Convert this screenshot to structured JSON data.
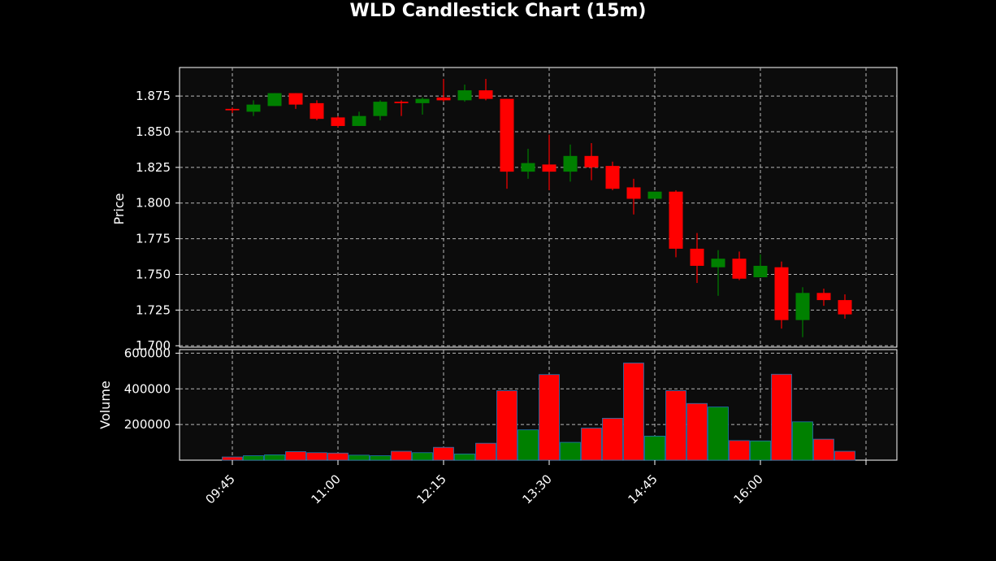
{
  "chart_data": {
    "type": "candlestick",
    "title": "WLD Candlestick Chart (15m)",
    "price_panel": {
      "ylabel": "Price",
      "ylim": [
        1.699,
        1.895
      ],
      "yticks": [
        "1.700",
        "1.725",
        "1.750",
        "1.775",
        "1.800",
        "1.825",
        "1.850",
        "1.875"
      ],
      "grid": true
    },
    "volume_panel": {
      "ylabel": "Volume",
      "ylim": [
        0,
        620000
      ],
      "yticks": [
        "200000",
        "400000",
        "600000"
      ],
      "grid": true
    },
    "xticks": [
      "09:45",
      "11:00",
      "12:15",
      "13:30",
      "14:45",
      "16:00",
      ""
    ],
    "candles": [
      {
        "o": 1.866,
        "h": 1.867,
        "l": 1.863,
        "c": 1.865,
        "v": 18000
      },
      {
        "o": 1.864,
        "h": 1.872,
        "l": 1.861,
        "c": 1.869,
        "v": 25000
      },
      {
        "o": 1.868,
        "h": 1.877,
        "l": 1.868,
        "c": 1.877,
        "v": 30000
      },
      {
        "o": 1.877,
        "h": 1.877,
        "l": 1.866,
        "c": 1.869,
        "v": 48000
      },
      {
        "o": 1.87,
        "h": 1.872,
        "l": 1.858,
        "c": 1.859,
        "v": 42000
      },
      {
        "o": 1.86,
        "h": 1.861,
        "l": 1.853,
        "c": 1.854,
        "v": 40000
      },
      {
        "o": 1.854,
        "h": 1.864,
        "l": 1.854,
        "c": 1.861,
        "v": 28000
      },
      {
        "o": 1.861,
        "h": 1.872,
        "l": 1.858,
        "c": 1.871,
        "v": 25000
      },
      {
        "o": 1.871,
        "h": 1.872,
        "l": 1.861,
        "c": 1.87,
        "v": 50000
      },
      {
        "o": 1.87,
        "h": 1.874,
        "l": 1.862,
        "c": 1.873,
        "v": 42000
      },
      {
        "o": 1.874,
        "h": 1.887,
        "l": 1.871,
        "c": 1.872,
        "v": 72000
      },
      {
        "o": 1.872,
        "h": 1.883,
        "l": 1.871,
        "c": 1.879,
        "v": 35000
      },
      {
        "o": 1.879,
        "h": 1.887,
        "l": 1.872,
        "c": 1.873,
        "v": 95000
      },
      {
        "o": 1.873,
        "h": 1.873,
        "l": 1.81,
        "c": 1.822,
        "v": 390000
      },
      {
        "o": 1.822,
        "h": 1.838,
        "l": 1.817,
        "c": 1.828,
        "v": 170000
      },
      {
        "o": 1.827,
        "h": 1.848,
        "l": 1.809,
        "c": 1.822,
        "v": 480000
      },
      {
        "o": 1.822,
        "h": 1.841,
        "l": 1.815,
        "c": 1.833,
        "v": 100000
      },
      {
        "o": 1.833,
        "h": 1.842,
        "l": 1.816,
        "c": 1.825,
        "v": 180000
      },
      {
        "o": 1.826,
        "h": 1.829,
        "l": 1.809,
        "c": 1.81,
        "v": 235000
      },
      {
        "o": 1.811,
        "h": 1.817,
        "l": 1.792,
        "c": 1.803,
        "v": 545000
      },
      {
        "o": 1.803,
        "h": 1.808,
        "l": 1.803,
        "c": 1.808,
        "v": 135000
      },
      {
        "o": 1.808,
        "h": 1.809,
        "l": 1.762,
        "c": 1.768,
        "v": 390000
      },
      {
        "o": 1.768,
        "h": 1.779,
        "l": 1.744,
        "c": 1.756,
        "v": 318000
      },
      {
        "o": 1.755,
        "h": 1.767,
        "l": 1.735,
        "c": 1.761,
        "v": 298000
      },
      {
        "o": 1.761,
        "h": 1.766,
        "l": 1.746,
        "c": 1.747,
        "v": 110000
      },
      {
        "o": 1.748,
        "h": 1.764,
        "l": 1.748,
        "c": 1.756,
        "v": 108000
      },
      {
        "o": 1.755,
        "h": 1.759,
        "l": 1.712,
        "c": 1.718,
        "v": 482000
      },
      {
        "o": 1.718,
        "h": 1.741,
        "l": 1.706,
        "c": 1.737,
        "v": 215000
      },
      {
        "o": 1.737,
        "h": 1.74,
        "l": 1.728,
        "c": 1.732,
        "v": 118000
      },
      {
        "o": 1.732,
        "h": 1.736,
        "l": 1.719,
        "c": 1.722,
        "v": 50000
      }
    ],
    "colors": {
      "up": "#008000",
      "down": "#ff0000",
      "volume_edge": "#1f77b4",
      "background": "#000000",
      "plot_background": "#0c0c0c",
      "grid": "#b8b8b8"
    }
  }
}
